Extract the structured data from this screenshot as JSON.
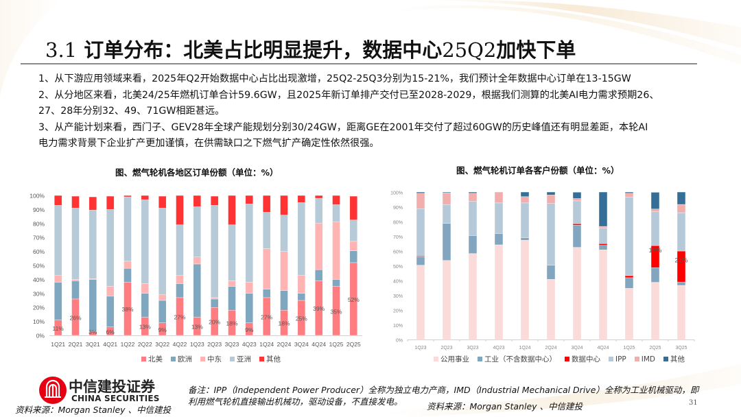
{
  "slide": {
    "title_num": "3.1",
    "title_part1": "订单分布：北美占比明显提升，数据中心",
    "title_mid": "25Q2",
    "title_part2": "加快下单",
    "page_number": "31",
    "bullets": [
      "1、从下游应用领域来看，2025年Q2开始数据中心占比出现激增，25Q2-25Q3分别为15-21%，我们预计全年数据中心订单在13-15GW",
      "2、从分地区来看，北美24/25年燃机订单合计59.6GW，且2025年新订单排产交付已至2028-2029，根据我们测算的北美AI电力需求预期26、",
      "27、28年分别32、49、71GW相距甚远。",
      "3、从产能计划来看，西门子、GEV28年全球产能规划分别30/24GW，距离GE在2001年交付了超过60GW的历史峰值还有明显差距，本轮AI",
      "电力需求背景下企业扩产更加谨慎，在供需缺口之下燃气扩产确定性依然很强。"
    ],
    "footer_note_line1": "备注：IPP（Independent Power Producer）全称为独立电力产商，IMD（Industrial Mechanical Drive）全称为工业机械驱动，即",
    "footer_note_line2": "利用燃气轮机直接输出机械功，驱动设备，不直接发电。",
    "source_left": "资料来源：Morgan Stanley 、中信建投",
    "source_right": "资料来源：Morgan Stanley 、中信建投",
    "logo_cn": "中信建投证券",
    "logo_en": "CHINA SECURITIES",
    "logo_icon": "citic-logo-icon"
  },
  "chart_data": [
    {
      "type": "bar",
      "stacked": true,
      "title": "图、燃气轮机各地区订单份额（单位：%）",
      "xlabel": "",
      "ylabel": "",
      "ylim": [
        0,
        100
      ],
      "yticks": [
        "0%",
        "10%",
        "20%",
        "30%",
        "40%",
        "50%",
        "60%",
        "70%",
        "80%",
        "90%",
        "100%"
      ],
      "grid": false,
      "legend_position": "bottom",
      "categories": [
        "1Q21",
        "2Q21",
        "3Q21",
        "4Q21",
        "1Q22",
        "2Q22",
        "3Q22",
        "4Q22",
        "1Q23",
        "2Q23",
        "3Q23",
        "4Q23",
        "1Q24",
        "2Q24",
        "3Q24",
        "4Q24",
        "1Q25",
        "2Q25"
      ],
      "series": [
        {
          "name": "北美",
          "color": "#ff7c80",
          "values": [
            11,
            26,
            3,
            6,
            38,
            13,
            9,
            27,
            13,
            20,
            18,
            9,
            27,
            18,
            25,
            39,
            35,
            52
          ]
        },
        {
          "name": "欧洲",
          "color": "#7fa7c0",
          "values": [
            27,
            13,
            37,
            22,
            10,
            17,
            16,
            10,
            38,
            6,
            17,
            21,
            6,
            14,
            5,
            8,
            5,
            8.5
          ]
        },
        {
          "name": "中东",
          "color": "#ffb3b3",
          "values": [
            5,
            1,
            0.5,
            7,
            5,
            7,
            4,
            6,
            5,
            1,
            4,
            8,
            29,
            28,
            13,
            33,
            41,
            6.7
          ]
        },
        {
          "name": "亚洲",
          "color": "#b6cad8",
          "values": [
            50,
            51,
            49,
            55,
            46,
            60,
            62,
            36,
            36,
            66,
            40,
            56,
            26,
            26,
            52,
            18,
            12.4,
            15.3
          ]
        },
        {
          "name": "其他",
          "color": "#ff3333",
          "values": [
            7,
            8.5,
            9.5,
            9.5,
            1,
            3,
            8.5,
            21,
            8,
            6.5,
            21,
            6,
            12,
            14,
            5,
            2,
            6.6,
            17
          ]
        }
      ],
      "data_labels": [
        "11%",
        "26%",
        "3%",
        "6%",
        "38%",
        "13%",
        "9%",
        "27%",
        "13%",
        "20%",
        "18%",
        "9%",
        "27%",
        "18%",
        "25%",
        "39%",
        "35%",
        "52%"
      ]
    },
    {
      "type": "bar",
      "stacked": true,
      "title": "图、燃气轮机订单各客户份额（单位：%）",
      "xlabel": "",
      "ylabel": "",
      "ylim": [
        0,
        100
      ],
      "yticks": [
        "0%",
        "10%",
        "20%",
        "30%",
        "40%",
        "50%",
        "60%",
        "70%",
        "80%",
        "90%",
        "100%"
      ],
      "grid": false,
      "legend_position": "bottom",
      "categories": [
        "1Q23",
        "2Q23",
        "3Q23",
        "4Q23",
        "1Q24",
        "2Q24",
        "3Q24",
        "4Q24",
        "1Q25",
        "2Q25",
        "3Q25"
      ],
      "series": [
        {
          "name": "公用事业",
          "color": "#fadbd9",
          "values": [
            50.4,
            53.6,
            58.3,
            64.2,
            67.3,
            40.8,
            62.5,
            60.8,
            34.7,
            38.8,
            36.7
          ]
        },
        {
          "name": "工业（不含数据中心）",
          "color": "#82a6bf",
          "values": [
            5.7,
            25.2,
            12.2,
            7.7,
            1.8,
            9.6,
            15,
            3.1,
            7.2,
            9.9,
            2.3
          ]
        },
        {
          "name": "数据中心",
          "color": "#ff0000",
          "values": [
            0.6,
            0,
            0,
            0,
            0,
            0,
            1,
            1.1,
            1.4,
            15,
            21
          ]
        },
        {
          "name": "IPP",
          "color": "#b5c9d8",
          "values": [
            32,
            12.7,
            23.3,
            20.7,
            23.5,
            41.8,
            15.5,
            10.5,
            53.3,
            22.9,
            26
          ]
        },
        {
          "name": "IMD",
          "color": "#f2adad",
          "values": [
            10.5,
            8,
            5.4,
            7.4,
            4.3,
            5.8,
            1.6,
            1.2,
            2.6,
            1.9,
            5.6
          ]
        },
        {
          "name": "其他",
          "color": "#356f97",
          "values": [
            0.8,
            0.5,
            0.8,
            0,
            3.1,
            2,
            4.3,
            23.3,
            0.8,
            11.3,
            8.5
          ]
        }
      ],
      "data_labels": {
        "2Q25": "15%",
        "3Q25": "21%"
      }
    }
  ]
}
